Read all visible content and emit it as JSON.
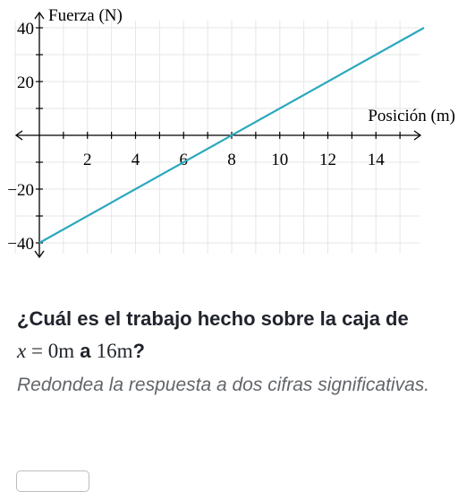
{
  "chart_data": {
    "type": "line",
    "title": "",
    "xlabel": "Posición (m)",
    "ylabel": "Fuerza (N)",
    "xlim": [
      -1.3,
      15.8
    ],
    "ylim": [
      -42,
      42
    ],
    "x_ticks": [
      2,
      4,
      6,
      8,
      10,
      12,
      14
    ],
    "y_ticks": [
      40,
      20,
      -20,
      -40
    ],
    "grid": true,
    "series": [
      {
        "x": [
          0,
          16
        ],
        "y": [
          -40,
          40
        ]
      }
    ],
    "line_color": "#2aa8bd"
  },
  "question": {
    "text_before": "¿Cuál es el trabajo hecho sobre la caja de",
    "x_var": "x",
    "eq": " = ",
    "from_value": "0",
    "unit1": "m",
    "connector": " a ",
    "to_value": "16",
    "unit2": "m",
    "end": "?"
  },
  "hint": "Redondea la respuesta a dos cifras significativas.",
  "answer": {
    "value": ""
  }
}
